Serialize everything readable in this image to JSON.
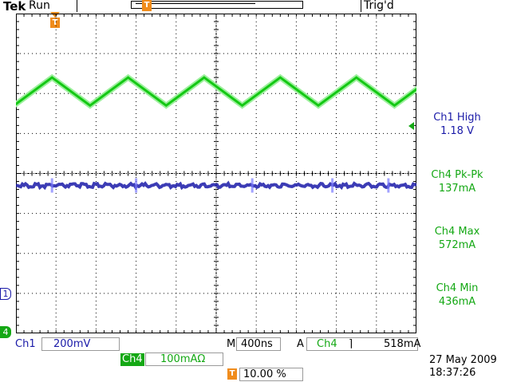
{
  "header": {
    "brand": "Tek",
    "run_state": "Run",
    "trigger_state": "Trig'd",
    "trigger_marker": "T"
  },
  "markers": {
    "ch1_ground": "1",
    "ch4_ground": "4"
  },
  "measurements": [
    {
      "label": "Ch1 High",
      "value": "1.18 V",
      "color": "#1a1aa8"
    },
    {
      "label": "Ch4 Pk-Pk",
      "value": "137mA",
      "color": "#14a814"
    },
    {
      "label": "Ch4 Max",
      "value": "572mA",
      "color": "#14a814"
    },
    {
      "label": "Ch4 Min",
      "value": "436mA",
      "color": "#14a814"
    }
  ],
  "status": {
    "ch1_label": "Ch1",
    "ch1_scale": "200mV",
    "ch4_label": "Ch4",
    "ch4_scale": "100mAΩ",
    "timebase_label": "M",
    "timebase": "400ns",
    "trigger_label": "A",
    "trigger_source": "Ch4",
    "trigger_slope": "⌉",
    "trigger_level": "518mA",
    "trigger_position_label": "T",
    "trigger_position": "10.00 %",
    "date": "27 May 2009",
    "time": "18:37:26"
  },
  "colors": {
    "ch1": "#1a1aa8",
    "ch4": "#14c814",
    "grid": "#000000"
  },
  "waveforms": {
    "ch1": {
      "level_div": 3.7,
      "glitch_positions_div": [
        0.9,
        3.0,
        5.9,
        7.9,
        9.3
      ]
    },
    "ch4": {
      "period_div": 1.9,
      "high_div": 1.6,
      "low_div": 0.7,
      "phase_div": 0.9
    }
  }
}
